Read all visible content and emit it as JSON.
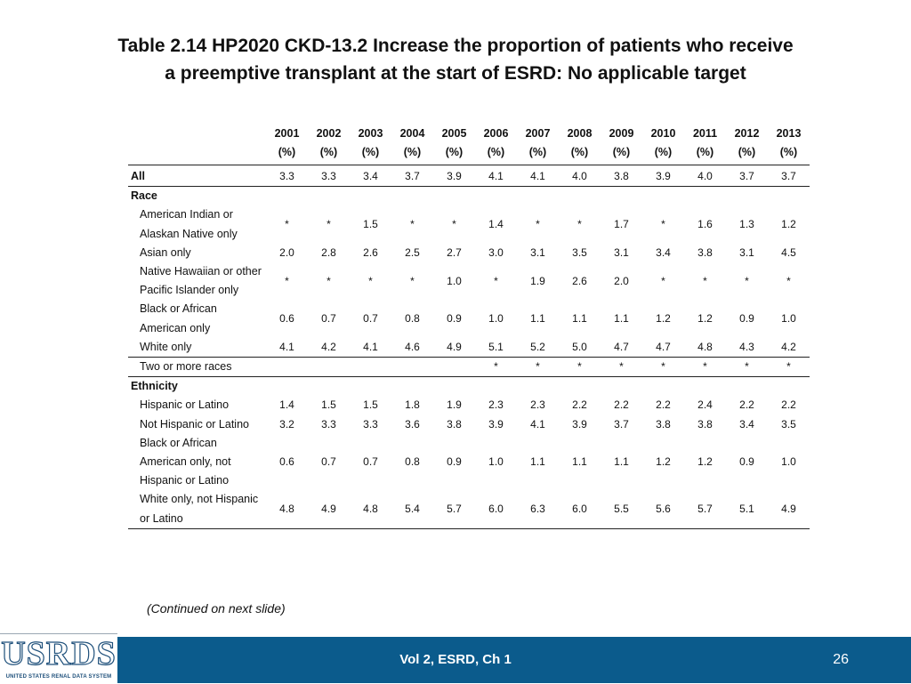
{
  "title": {
    "line1": "Table 2.14  HP2020 CKD-13.2 Increase the proportion of patients who receive",
    "line2": "a preemptive transplant at the start of ESRD: No applicable target"
  },
  "table": {
    "years": [
      "2001",
      "2002",
      "2003",
      "2004",
      "2005",
      "2006",
      "2007",
      "2008",
      "2009",
      "2010",
      "2011",
      "2012",
      "2013"
    ],
    "unit": "(%)",
    "rows": [
      {
        "label": "All",
        "style": "bold",
        "values": [
          "3.3",
          "3.3",
          "3.4",
          "3.7",
          "3.9",
          "4.1",
          "4.1",
          "4.0",
          "3.8",
          "3.9",
          "4.0",
          "3.7",
          "3.7"
        ],
        "sep": true,
        "first": true
      },
      {
        "label": "Race",
        "style": "bold",
        "values": []
      },
      {
        "label": "American Indian or Alaskan Native only",
        "style": "ind",
        "values": [
          "*",
          "*",
          "1.5",
          "*",
          "*",
          "1.4",
          "*",
          "*",
          "1.7",
          "*",
          "1.6",
          "1.3",
          "1.2"
        ]
      },
      {
        "label": "Asian only",
        "style": "ind",
        "values": [
          "2.0",
          "2.8",
          "2.6",
          "2.5",
          "2.7",
          "3.0",
          "3.1",
          "3.5",
          "3.1",
          "3.4",
          "3.8",
          "3.1",
          "4.5"
        ]
      },
      {
        "label": "Native Hawaiian or other Pacific Islander only",
        "style": "ind",
        "values": [
          "*",
          "*",
          "*",
          "*",
          "1.0",
          "*",
          "1.9",
          "2.6",
          "2.0",
          "*",
          "*",
          "*",
          "*"
        ]
      },
      {
        "label": "Black or African American only",
        "style": "ind",
        "values": [
          "0.6",
          "0.7",
          "0.7",
          "0.8",
          "0.9",
          "1.0",
          "1.1",
          "1.1",
          "1.1",
          "1.2",
          "1.2",
          "0.9",
          "1.0"
        ]
      },
      {
        "label": "White only",
        "style": "ind",
        "values": [
          "4.1",
          "4.2",
          "4.1",
          "4.6",
          "4.9",
          "5.1",
          "5.2",
          "5.0",
          "4.7",
          "4.7",
          "4.8",
          "4.3",
          "4.2"
        ],
        "sep": true
      },
      {
        "label": "Two or more races",
        "style": "ind",
        "values": [
          "",
          "",
          "",
          "",
          "",
          "*",
          "*",
          "*",
          "*",
          "*",
          "*",
          "*",
          "*"
        ],
        "sep": true
      },
      {
        "label": "Ethnicity",
        "style": "bold",
        "values": []
      },
      {
        "label": "Hispanic or Latino",
        "style": "ind",
        "values": [
          "1.4",
          "1.5",
          "1.5",
          "1.8",
          "1.9",
          "2.3",
          "2.3",
          "2.2",
          "2.2",
          "2.2",
          "2.4",
          "2.2",
          "2.2"
        ]
      },
      {
        "label": "Not Hispanic or Latino",
        "style": "ind",
        "values": [
          "3.2",
          "3.3",
          "3.3",
          "3.6",
          "3.8",
          "3.9",
          "4.1",
          "3.9",
          "3.7",
          "3.8",
          "3.8",
          "3.4",
          "3.5"
        ]
      },
      {
        "label": "Black or African American only, not Hispanic or Latino",
        "style": "ind",
        "values": [
          "0.6",
          "0.7",
          "0.7",
          "0.8",
          "0.9",
          "1.0",
          "1.1",
          "1.1",
          "1.1",
          "1.2",
          "1.2",
          "0.9",
          "1.0"
        ]
      },
      {
        "label": "White only, not Hispanic or Latino",
        "style": "ind",
        "values": [
          "4.8",
          "4.9",
          "4.8",
          "5.4",
          "5.7",
          "6.0",
          "6.3",
          "6.0",
          "5.5",
          "5.6",
          "5.7",
          "5.1",
          "4.9"
        ],
        "sep": true
      }
    ]
  },
  "continued_note": "(Continued on next slide)",
  "footer": {
    "logo_text": "USRDS",
    "logo_subtext": "UNITED STATES RENAL DATA SYSTEM",
    "center_text": "Vol 2, ESRD, Ch 1",
    "page_number": "26",
    "bar_color": "#0b5b8c"
  }
}
